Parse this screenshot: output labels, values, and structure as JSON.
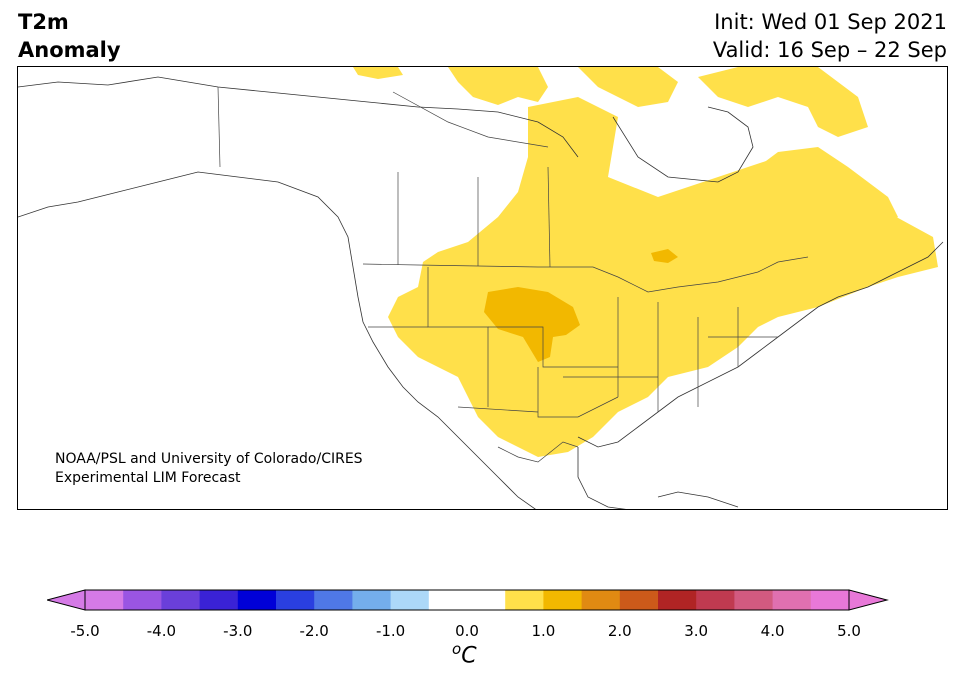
{
  "title": {
    "left_line1": "T2m",
    "left_line2": "Anomaly",
    "init": "Init: Wed 01 Sep 2021",
    "valid": "Valid: 16 Sep – 22 Sep"
  },
  "credit": {
    "line1": "NOAA/PSL and University of Colorado/CIRES",
    "line2": "Experimental LIM Forecast"
  },
  "colorbar": {
    "ticks": [
      "-5.0",
      "-4.0",
      "-3.0",
      "-2.0",
      "-1.0",
      "0.0",
      "1.0",
      "2.0",
      "3.0",
      "4.0",
      "5.0"
    ],
    "unit_base": "C",
    "unit_sup": "o",
    "colors": [
      "#d57ae6",
      "#9a55e3",
      "#6a3fda",
      "#3a22d6",
      "#0000d8",
      "#2a3fe0",
      "#4f78e6",
      "#74aeec",
      "#acd8f8",
      "#ffffff",
      "#ffffff",
      "#ffe04a",
      "#f2b800",
      "#e08a12",
      "#cc5a1a",
      "#b02424",
      "#c03a50",
      "#d25a80",
      "#e070b0",
      "#e878d8"
    ],
    "min_arrow_color": "#d57ae6",
    "max_arrow_color": "#e878d8"
  },
  "map": {
    "anomaly_light_color": "#ffe04a",
    "anomaly_dark_color": "#f2b800",
    "border_color": "#444444"
  }
}
